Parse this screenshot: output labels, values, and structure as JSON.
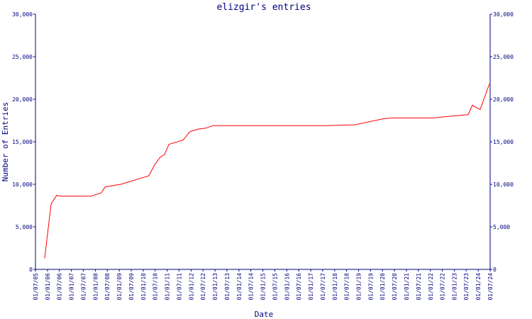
{
  "chart_data": {
    "type": "line",
    "title": "elizgir's entries",
    "x_label": "Date",
    "y_label": "Number of Entries",
    "color": "#ff0000",
    "x": [
      "2005-11-18",
      "2006-02-25",
      "2006-05-20",
      "2006-08-05",
      "2007-10-22",
      "2008-04-03",
      "2008-05-28",
      "2009-01-22",
      "2010-03-28",
      "2010-06-24",
      "2010-09-19",
      "2010-11-22",
      "2011-01-28",
      "2011-09-01",
      "2011-12-16",
      "2012-04-25",
      "2012-08-12",
      "2012-11-28",
      "2017-08-25",
      "2018-11-04",
      "2020-01-10",
      "2020-05-28",
      "2022-02-07",
      "2023-08-01",
      "2023-10-04",
      "2023-12-09",
      "2024-01-31",
      "2024-06-19"
    ],
    "values": [
      1300,
      7700,
      8700,
      8600,
      8600,
      9000,
      9700,
      10000,
      11000,
      12300,
      13200,
      13500,
      14700,
      15200,
      16200,
      16500,
      16600,
      16900,
      16900,
      17000,
      17700,
      17800,
      17800,
      18200,
      19300,
      19000,
      18800,
      21800
    ],
    "xlim": [
      "2005-07-01",
      "2024-07-01"
    ],
    "xticks": [
      {
        "value": "2005-07-01",
        "label": "01/07/05"
      },
      {
        "value": "2006-01-01",
        "label": "01/01/06"
      },
      {
        "value": "2006-07-01",
        "label": "01/07/06"
      },
      {
        "value": "2007-01-01",
        "label": "01/01/07"
      },
      {
        "value": "2007-07-01",
        "label": "01/07/07"
      },
      {
        "value": "2008-01-01",
        "label": "01/01/08"
      },
      {
        "value": "2008-07-01",
        "label": "01/07/08"
      },
      {
        "value": "2009-01-01",
        "label": "01/01/09"
      },
      {
        "value": "2009-07-01",
        "label": "01/07/09"
      },
      {
        "value": "2010-01-01",
        "label": "01/01/10"
      },
      {
        "value": "2010-07-01",
        "label": "01/07/10"
      },
      {
        "value": "2011-01-01",
        "label": "01/01/11"
      },
      {
        "value": "2011-07-01",
        "label": "01/07/11"
      },
      {
        "value": "2012-01-01",
        "label": "01/01/12"
      },
      {
        "value": "2012-07-01",
        "label": "01/07/12"
      },
      {
        "value": "2013-01-01",
        "label": "01/01/13"
      },
      {
        "value": "2013-07-01",
        "label": "01/07/13"
      },
      {
        "value": "2014-01-01",
        "label": "01/01/14"
      },
      {
        "value": "2014-07-01",
        "label": "01/07/14"
      },
      {
        "value": "2015-01-01",
        "label": "01/01/15"
      },
      {
        "value": "2015-07-01",
        "label": "01/07/15"
      },
      {
        "value": "2016-01-01",
        "label": "01/01/16"
      },
      {
        "value": "2016-07-01",
        "label": "01/07/16"
      },
      {
        "value": "2017-01-01",
        "label": "01/01/17"
      },
      {
        "value": "2017-07-01",
        "label": "01/07/17"
      },
      {
        "value": "2018-01-01",
        "label": "01/01/18"
      },
      {
        "value": "2018-07-01",
        "label": "01/07/18"
      },
      {
        "value": "2019-01-01",
        "label": "01/01/19"
      },
      {
        "value": "2019-07-01",
        "label": "01/07/19"
      },
      {
        "value": "2020-01-01",
        "label": "01/01/20"
      },
      {
        "value": "2020-07-01",
        "label": "01/07/20"
      },
      {
        "value": "2021-01-01",
        "label": "01/01/21"
      },
      {
        "value": "2021-07-01",
        "label": "01/07/21"
      },
      {
        "value": "2022-01-01",
        "label": "01/01/22"
      },
      {
        "value": "2022-07-01",
        "label": "01/07/22"
      },
      {
        "value": "2023-01-01",
        "label": "01/01/23"
      },
      {
        "value": "2023-07-01",
        "label": "01/07/23"
      },
      {
        "value": "2024-01-01",
        "label": "01/01/24"
      },
      {
        "value": "2024-07-01",
        "label": "01/07/24"
      }
    ],
    "ylim": [
      0,
      30000
    ],
    "yticks": [
      0,
      {
        "value": 5000,
        "label": "5,000"
      },
      {
        "value": 10000,
        "label": "10,000"
      },
      {
        "value": 15000,
        "label": "15,000"
      },
      {
        "value": 20000,
        "label": "20,000"
      },
      {
        "value": 25000,
        "label": "25,000"
      },
      {
        "value": 30000,
        "label": "30,000"
      }
    ]
  }
}
